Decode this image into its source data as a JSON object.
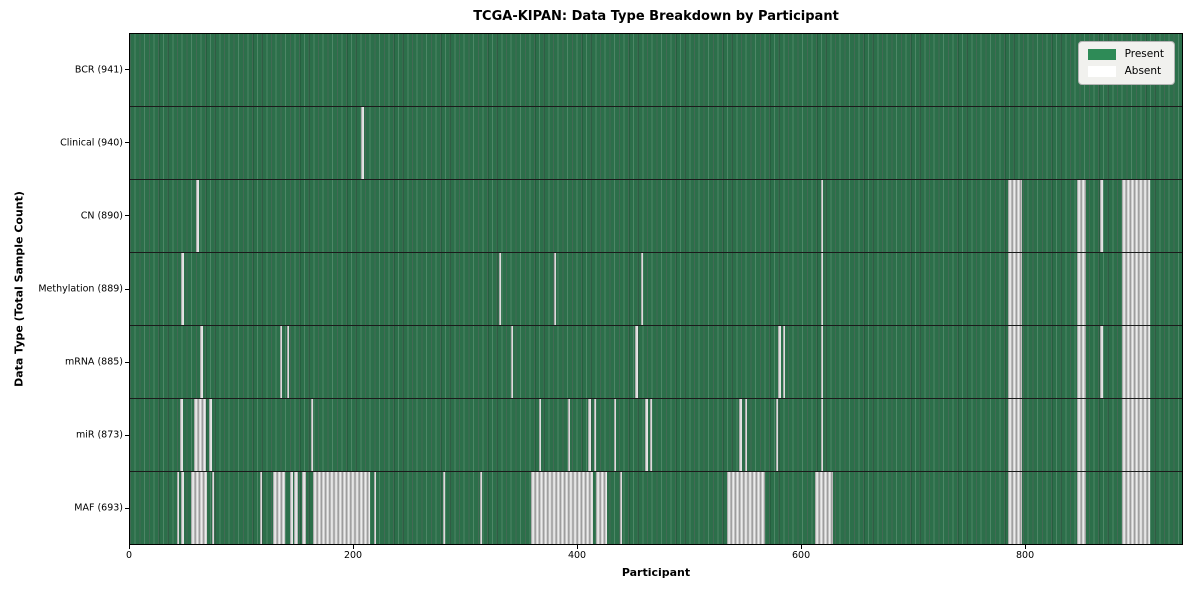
{
  "chart_data": {
    "type": "heatmap",
    "title": "TCGA-KIPAN: Data Type Breakdown by Participant",
    "xlabel": "Participant",
    "ylabel": "Data Type (Total Sample Count)",
    "x_range": [
      0,
      941
    ],
    "x_ticks": [
      0,
      200,
      400,
      600,
      800
    ],
    "grid": false,
    "legend_position": "upper right",
    "colors": {
      "present": "#2e8b57",
      "absent": "#ffffff",
      "absent_stripe_render": "#c9c9c9",
      "legend_bg": "#f1f1ee"
    },
    "legend": [
      {
        "label": "Present",
        "color": "#2e8b57"
      },
      {
        "label": "Absent",
        "color": "#ffffff"
      }
    ],
    "rows": [
      {
        "label": "BCR (941)",
        "present_count": 941,
        "absent_ranges": []
      },
      {
        "label": "Clinical (940)",
        "present_count": 940,
        "absent_ranges": [
          [
            207,
            209
          ]
        ]
      },
      {
        "label": "CN (890)",
        "present_count": 890,
        "absent_ranges": [
          [
            59,
            62
          ],
          [
            618,
            620
          ],
          [
            785,
            798
          ],
          [
            847,
            855
          ],
          [
            868,
            870
          ],
          [
            887,
            912
          ]
        ]
      },
      {
        "label": "Methylation (889)",
        "present_count": 889,
        "absent_ranges": [
          [
            46,
            48
          ],
          [
            330,
            332
          ],
          [
            379,
            381
          ],
          [
            457,
            459
          ],
          [
            618,
            620
          ],
          [
            785,
            798
          ],
          [
            847,
            855
          ],
          [
            887,
            912
          ]
        ]
      },
      {
        "label": "mRNA (885)",
        "present_count": 885,
        "absent_ranges": [
          [
            63,
            65
          ],
          [
            134,
            136
          ],
          [
            140,
            142
          ],
          [
            341,
            343
          ],
          [
            452,
            454
          ],
          [
            580,
            582
          ],
          [
            584,
            586
          ],
          [
            618,
            620
          ],
          [
            785,
            798
          ],
          [
            847,
            855
          ],
          [
            868,
            870
          ],
          [
            887,
            912
          ]
        ]
      },
      {
        "label": "miR (873)",
        "present_count": 873,
        "absent_ranges": [
          [
            45,
            47
          ],
          [
            57,
            68
          ],
          [
            71,
            73
          ],
          [
            162,
            164
          ],
          [
            366,
            368
          ],
          [
            392,
            394
          ],
          [
            410,
            412
          ],
          [
            415,
            417
          ],
          [
            433,
            435
          ],
          [
            461,
            463
          ],
          [
            465,
            467
          ],
          [
            545,
            547
          ],
          [
            550,
            552
          ],
          [
            578,
            580
          ],
          [
            618,
            620
          ],
          [
            785,
            798
          ],
          [
            847,
            855
          ],
          [
            887,
            912
          ]
        ]
      },
      {
        "label": "MAF (693)",
        "present_count": 693,
        "absent_ranges": [
          [
            42,
            44
          ],
          [
            46,
            48
          ],
          [
            55,
            69
          ],
          [
            73,
            75
          ],
          [
            116,
            118
          ],
          [
            128,
            139
          ],
          [
            143,
            146
          ],
          [
            147,
            150
          ],
          [
            154,
            157
          ],
          [
            164,
            215
          ],
          [
            218,
            220
          ],
          [
            280,
            282
          ],
          [
            313,
            315
          ],
          [
            359,
            414
          ],
          [
            417,
            427
          ],
          [
            438,
            440
          ],
          [
            534,
            568
          ],
          [
            613,
            629
          ],
          [
            785,
            798
          ],
          [
            847,
            855
          ],
          [
            887,
            912
          ]
        ]
      }
    ]
  }
}
